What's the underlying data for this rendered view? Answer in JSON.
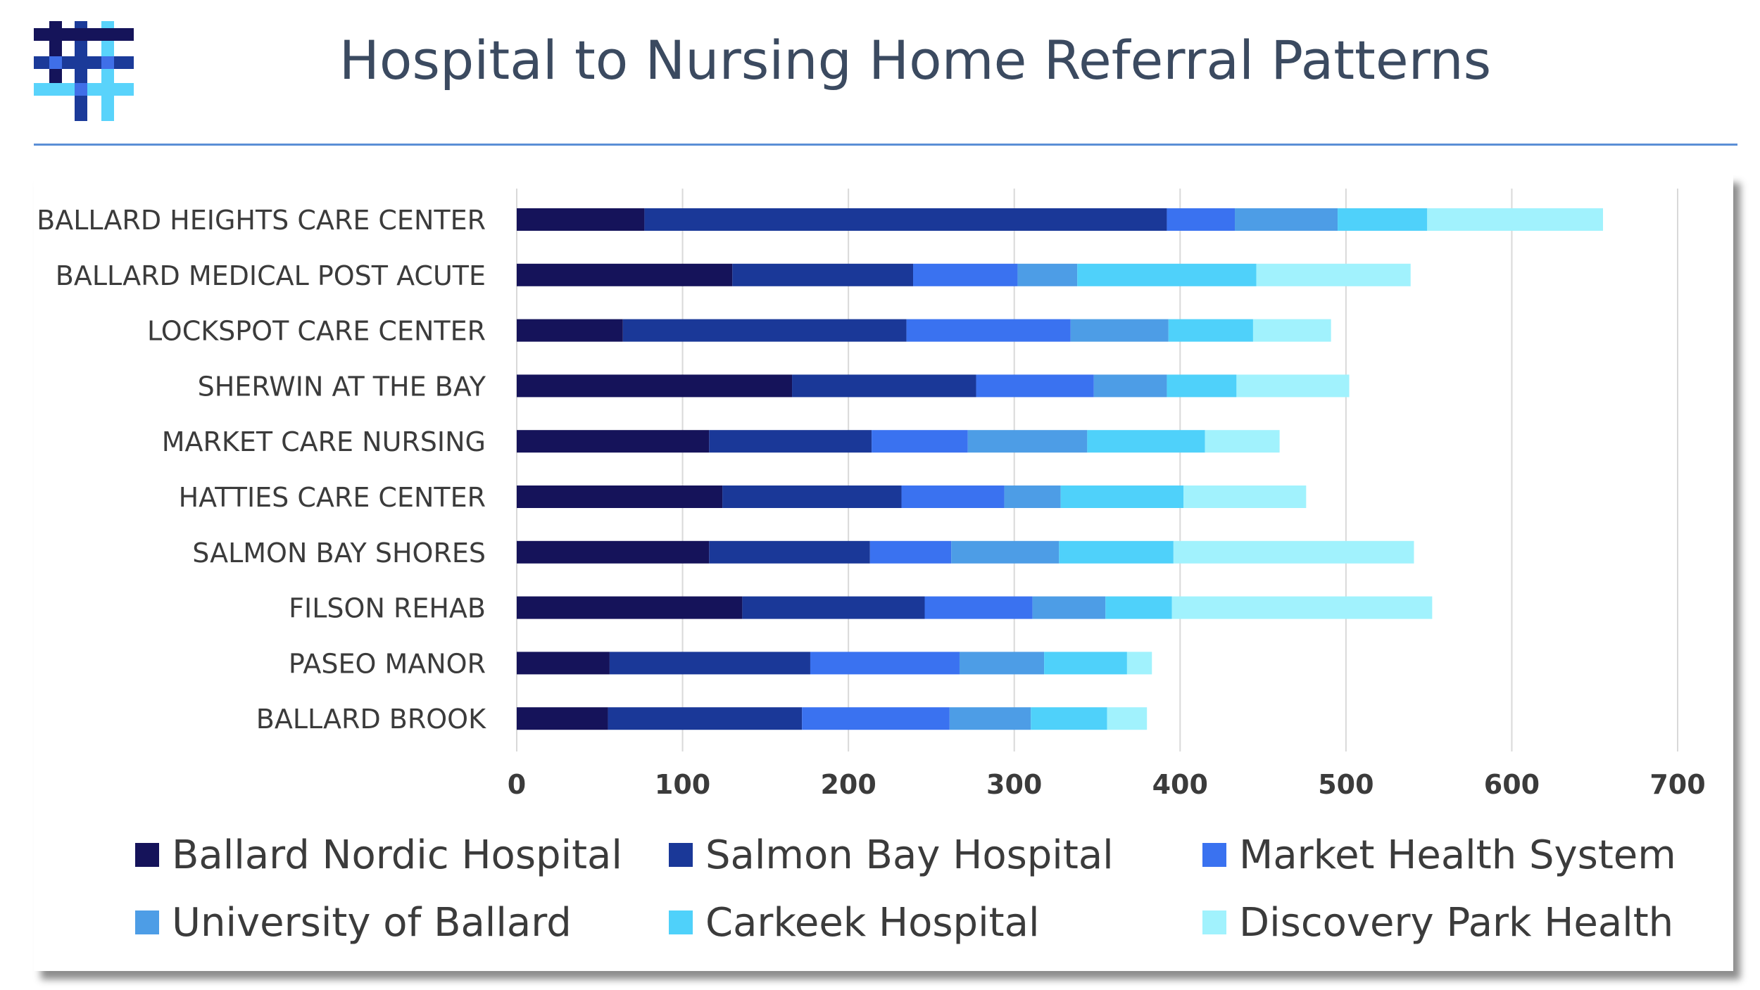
{
  "header": {
    "title": "Hospital to Nursing Home Referral Patterns"
  },
  "logo": {
    "icon": "hashtag-grid-logo-icon",
    "colors": [
      "#15145a",
      "#1b3a99",
      "#3f6fe8",
      "#59d3fb"
    ]
  },
  "chart_data": {
    "type": "bar",
    "orientation": "horizontal",
    "stacked": true,
    "title": "",
    "xlabel": "",
    "ylabel": "",
    "xlim": [
      0,
      700
    ],
    "x_ticks": [
      0,
      100,
      200,
      300,
      400,
      500,
      600,
      700
    ],
    "grid": "vertical",
    "legend_position": "bottom",
    "categories": [
      "BALLARD HEIGHTS CARE CENTER",
      "BALLARD MEDICAL POST ACUTE",
      "LOCKSPOT CARE CENTER",
      "SHERWIN AT THE BAY",
      "MARKET CARE NURSING",
      "HATTIES CARE CENTER",
      "SALMON BAY SHORES",
      "FILSON REHAB",
      "PASEO MANOR",
      "BALLARD BROOK"
    ],
    "series": [
      {
        "name": "Ballard Nordic Hospital",
        "color": "#15135a",
        "values": [
          77,
          130,
          64,
          166,
          116,
          124,
          116,
          136,
          56,
          55
        ]
      },
      {
        "name": "Salmon Bay Hospital",
        "color": "#1a3898",
        "values": [
          315,
          109,
          171,
          111,
          98,
          108,
          97,
          110,
          121,
          117
        ]
      },
      {
        "name": "Market Health System",
        "color": "#3a72f0",
        "values": [
          41,
          63,
          99,
          71,
          58,
          62,
          49,
          65,
          90,
          89
        ]
      },
      {
        "name": "University of Ballard",
        "color": "#4d9de6",
        "values": [
          62,
          36,
          59,
          44,
          72,
          34,
          65,
          44,
          51,
          49
        ]
      },
      {
        "name": "Carkeek Hospital",
        "color": "#4fd1fa",
        "values": [
          54,
          108,
          51,
          42,
          71,
          74,
          69,
          40,
          50,
          46
        ]
      },
      {
        "name": "Discovery Park Health",
        "color": "#a1f2fd",
        "values": [
          106,
          93,
          47,
          68,
          45,
          74,
          145,
          157,
          15,
          24
        ]
      }
    ]
  }
}
